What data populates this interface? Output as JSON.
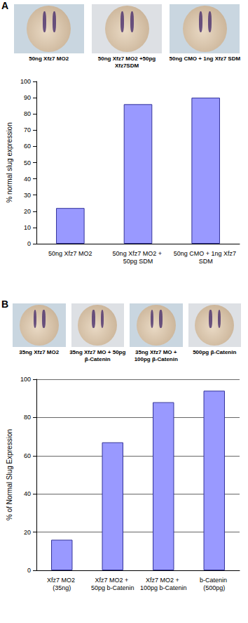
{
  "chart_data": [
    {
      "type": "bar",
      "label": "A",
      "image_captions": [
        "50ng Xfz7 MO2",
        "50ng Xfz7 MO2 +50pg Xfz7SDM",
        "50ng CMO + 1ng Xfz7 SDM"
      ],
      "y_label": "% normal slug expression",
      "categories": [
        "50ng Xfz7 MO2",
        "50ng Xfz7 MO2 + 50pg SDM",
        "50ng CMO + 1ng Xfz7 SDM"
      ],
      "values": [
        22,
        86,
        90
      ],
      "color": "#9999ff",
      "ylim": [
        0,
        100
      ],
      "yticks": [
        0,
        10,
        20,
        30,
        40,
        50,
        60,
        70,
        80,
        90,
        100
      ],
      "grid": false
    },
    {
      "type": "bar",
      "label": "B",
      "image_captions": [
        "35ng Xfz7 MO2",
        "35ng Xfz7 MO + 50pg β-Catenin",
        "35ng Xfz7 MO + 100pg β-Catenin",
        "500pg β-Catenin"
      ],
      "y_label": "% of Normal Slug Expression",
      "categories": [
        "Xfz7 MO2 (35ng)",
        "Xfz7 MO2 + 50pg b-Catenin",
        "Xfz7 MO2 + 100pg b-Catenin",
        "b-Catenin (500pg)"
      ],
      "values": [
        16,
        67,
        88,
        94
      ],
      "color": "#9999ff",
      "ylim": [
        0,
        100
      ],
      "yticks": [
        0,
        20,
        40,
        60,
        80,
        100
      ],
      "grid": true
    }
  ]
}
